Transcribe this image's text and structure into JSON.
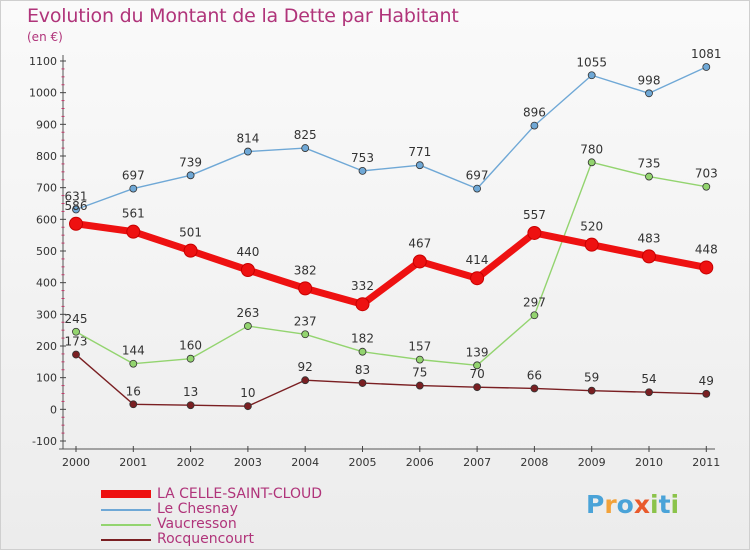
{
  "header": {
    "title": "Evolution du Montant de la Dette par Habitant",
    "subtitle": "(en €)"
  },
  "brand": {
    "letters": [
      "P",
      "r",
      "o",
      "x",
      "i",
      "t",
      "i"
    ],
    "colors": [
      "#4aa3d8",
      "#f2a23a",
      "#4aa3d8",
      "#e95a2c",
      "#8bc34a",
      "#4aa3d8",
      "#8bc34a"
    ]
  },
  "chart_data": {
    "type": "line",
    "title": "Evolution du Montant de la Dette par Habitant",
    "subtitle": "(en €)",
    "xlabel": "",
    "ylabel": "",
    "x": [
      "2000",
      "2001",
      "2002",
      "2003",
      "2004",
      "2005",
      "2006",
      "2007",
      "2008",
      "2009",
      "2010",
      "2011"
    ],
    "ylim": [
      -100,
      1100
    ],
    "yticks": [
      -100,
      0,
      100,
      200,
      300,
      400,
      500,
      600,
      700,
      800,
      900,
      1000,
      1100
    ],
    "grid": false,
    "legend_position": "bottom-left",
    "series": [
      {
        "name": "LA CELLE-SAINT-CLOUD",
        "color": "#ee1111",
        "values": [
          586,
          561,
          501,
          440,
          382,
          332,
          467,
          414,
          557,
          520,
          483,
          448
        ]
      },
      {
        "name": "Le Chesnay",
        "color": "#6fa8d6",
        "values": [
          631,
          697,
          739,
          814,
          825,
          753,
          771,
          697,
          896,
          1055,
          998,
          1081
        ]
      },
      {
        "name": "Vaucresson",
        "color": "#93d46f",
        "values": [
          245,
          144,
          160,
          263,
          237,
          182,
          157,
          139,
          297,
          780,
          735,
          703
        ]
      },
      {
        "name": "Rocquencourt",
        "color": "#7a1f22",
        "values": [
          173,
          16,
          13,
          10,
          92,
          83,
          75,
          70,
          66,
          59,
          54,
          49
        ]
      }
    ]
  }
}
